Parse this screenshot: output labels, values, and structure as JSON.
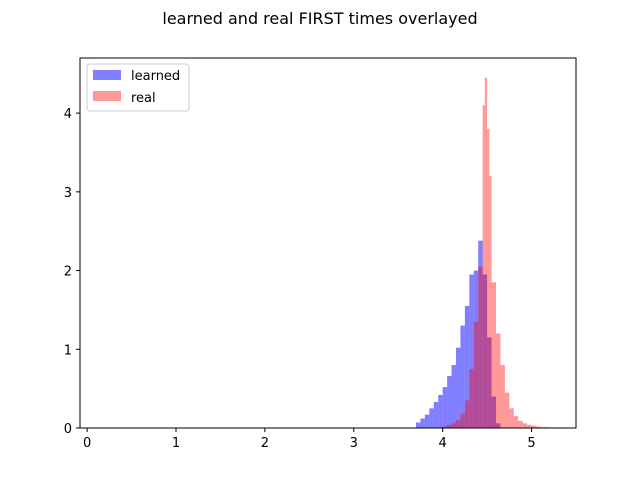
{
  "chart_data": {
    "type": "histogram",
    "title": "learned and real FIRST times overlayed",
    "xlabel": "",
    "ylabel": "",
    "xlim": [
      -0.08,
      5.5
    ],
    "ylim": [
      0,
      4.7
    ],
    "x_ticks": [
      0,
      1,
      2,
      3,
      4,
      5
    ],
    "y_ticks": [
      0,
      1,
      2,
      3,
      4
    ],
    "grid": false,
    "legend_position": "top-left",
    "series": [
      {
        "name": "learned",
        "color": "#0000ff",
        "alpha": 0.5,
        "bin_edges": [
          3.7,
          3.75,
          3.8,
          3.85,
          3.9,
          3.95,
          4.0,
          4.05,
          4.1,
          4.15,
          4.2,
          4.25,
          4.3,
          4.35,
          4.4,
          4.45,
          4.5,
          4.55,
          4.6,
          4.65
        ],
        "values": [
          0.07,
          0.12,
          0.17,
          0.25,
          0.33,
          0.42,
          0.52,
          0.66,
          0.8,
          1.02,
          1.3,
          1.55,
          1.95,
          2.0,
          2.38,
          1.95,
          1.15,
          0.4,
          0.06
        ]
      },
      {
        "name": "real",
        "color": "#ff0000",
        "alpha": 0.4,
        "bin_edges": [
          4.0,
          4.05,
          4.1,
          4.15,
          4.2,
          4.25,
          4.3,
          4.35,
          4.4,
          4.45,
          4.475,
          4.5,
          4.525,
          4.55,
          4.6,
          4.65,
          4.7,
          4.75,
          4.8,
          4.85,
          4.9,
          4.95,
          5.0,
          5.05,
          5.1,
          5.2
        ],
        "values": [
          0.02,
          0.04,
          0.06,
          0.1,
          0.18,
          0.35,
          0.75,
          1.35,
          2.05,
          4.1,
          4.45,
          3.8,
          3.2,
          1.85,
          1.2,
          0.8,
          0.45,
          0.25,
          0.15,
          0.09,
          0.06,
          0.04,
          0.03,
          0.02,
          0.01
        ]
      }
    ]
  }
}
